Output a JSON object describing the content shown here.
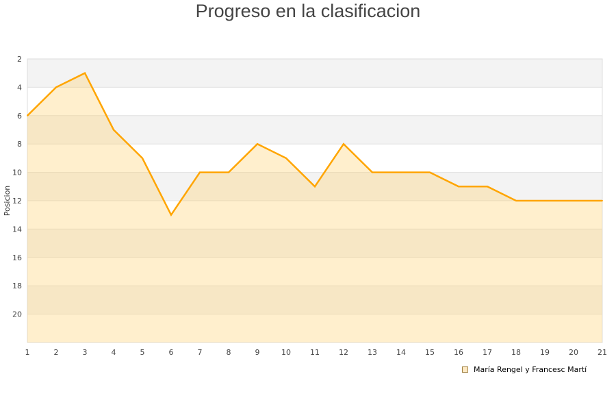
{
  "chart_data": {
    "type": "area",
    "title": "Progreso en la clasificacion",
    "ylabel": "Posicion",
    "x": [
      1,
      2,
      3,
      4,
      5,
      6,
      7,
      8,
      9,
      10,
      11,
      12,
      13,
      14,
      15,
      16,
      17,
      18,
      19,
      20,
      21
    ],
    "series": [
      {
        "name": "María Rengel y Francesc Martí",
        "values": [
          6,
          4,
          3,
          7,
          9,
          13,
          10,
          10,
          8,
          9,
          11,
          8,
          10,
          10,
          10,
          11,
          11,
          12,
          12,
          12,
          12
        ],
        "color": "#ffa500",
        "fill": "#ffebc6"
      }
    ],
    "xlim": [
      1,
      21
    ],
    "ylim": [
      22,
      2
    ],
    "y_reversed": true,
    "yticks": [
      2,
      4,
      6,
      8,
      10,
      12,
      14,
      16,
      18,
      20
    ],
    "grid": true,
    "legend": "bottom-right"
  }
}
